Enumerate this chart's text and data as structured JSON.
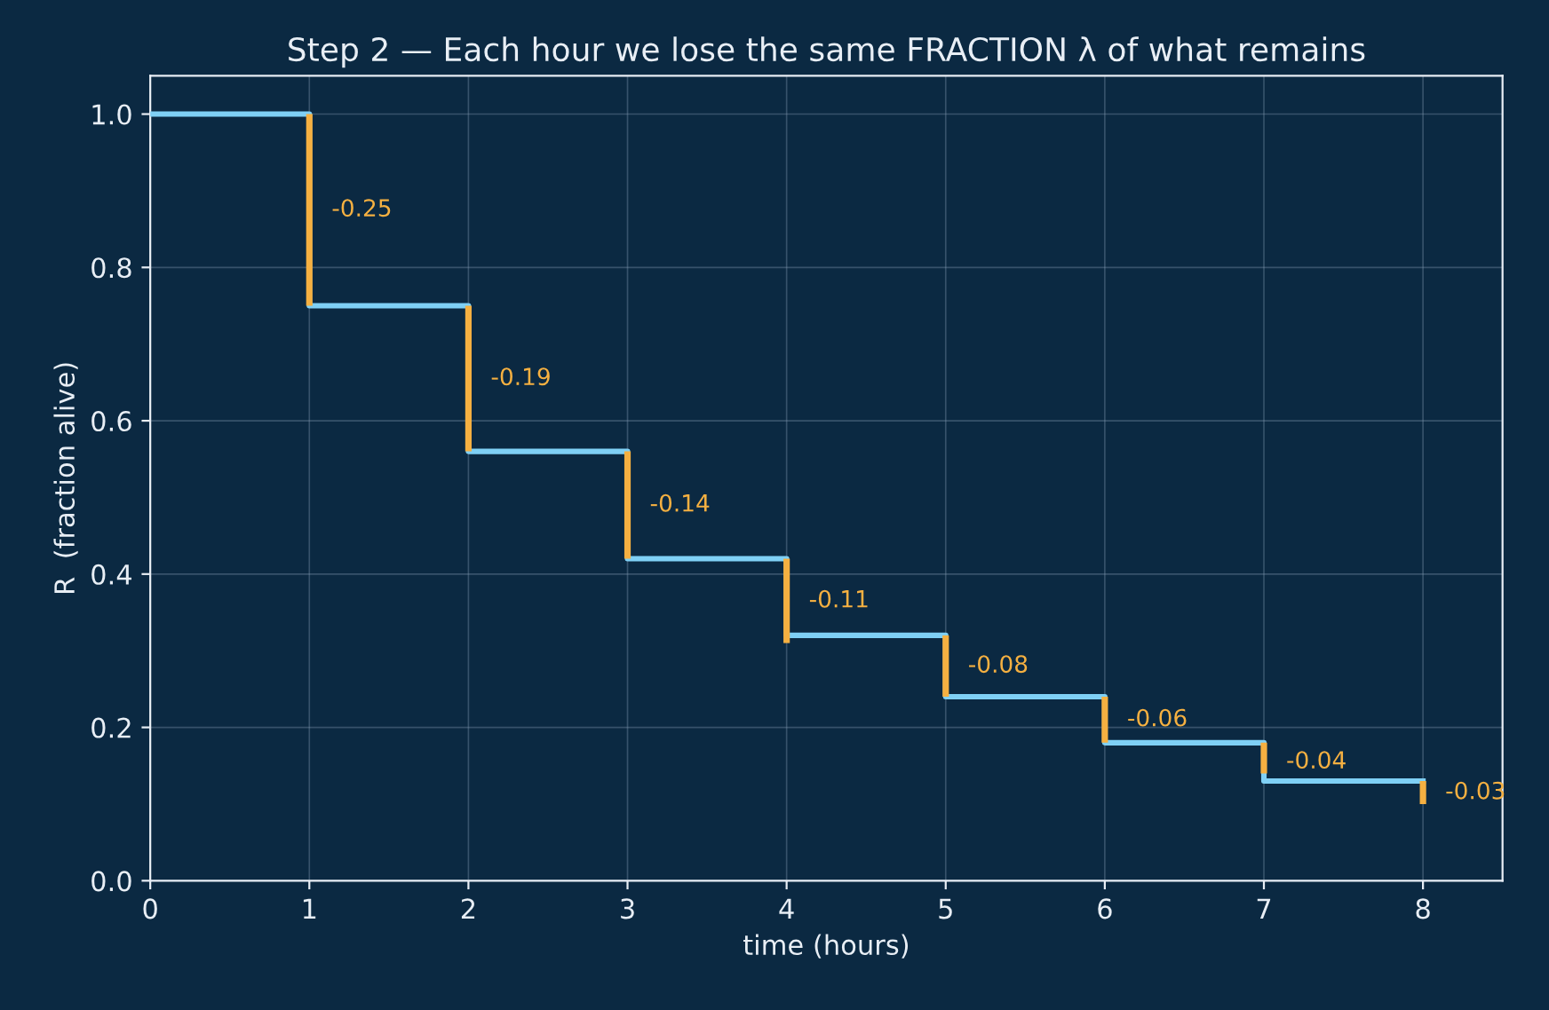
{
  "chart_data": {
    "type": "step",
    "title": "Step 2 — Each hour we lose the same FRACTION λ of what remains",
    "xlabel": "time (hours)",
    "ylabel": "R  (fraction alive)",
    "series": [
      {
        "color": "#7fd0f5",
        "x": [
          0,
          1,
          2,
          3,
          4,
          5,
          6,
          7,
          8
        ],
        "values": [
          1.0,
          0.75,
          0.56,
          0.42,
          0.32,
          0.24,
          0.18,
          0.13,
          0.13
        ]
      },
      {
        "type": "bar",
        "color": "#f5b041",
        "x": [
          1,
          2,
          3,
          4,
          5,
          6,
          7,
          8
        ],
        "base": [
          1.0,
          0.75,
          0.56,
          0.42,
          0.32,
          0.24,
          0.18,
          0.13
        ],
        "values": [
          -0.25,
          -0.19,
          -0.14,
          -0.11,
          -0.08,
          -0.06,
          -0.04,
          -0.03
        ]
      }
    ],
    "xlim": [
      0,
      8.5
    ],
    "xticks": [
      0,
      1,
      2,
      3,
      4,
      5,
      6,
      7,
      8
    ],
    "ylim": [
      0,
      1.05
    ],
    "yticks": [
      {
        "value": 0,
        "label": "0.0"
      },
      {
        "value": 0.2,
        "label": "0.2"
      },
      {
        "value": 0.4,
        "label": "0.4"
      },
      {
        "value": 0.6,
        "label": "0.6"
      },
      {
        "value": 0.8,
        "label": "0.8"
      },
      {
        "value": 1.0,
        "label": "1.0"
      }
    ],
    "grid": true,
    "annotations": [
      {
        "text": "-0.25",
        "x": 1,
        "y": 0.875
      },
      {
        "text": "-0.19",
        "x": 2,
        "y": 0.655
      },
      {
        "text": "-0.14",
        "x": 3,
        "y": 0.49
      },
      {
        "text": "-0.11",
        "x": 4,
        "y": 0.365
      },
      {
        "text": "-0.08",
        "x": 5,
        "y": 0.28
      },
      {
        "text": "-0.06",
        "x": 6,
        "y": 0.21
      },
      {
        "text": "-0.04",
        "x": 7,
        "y": 0.155
      },
      {
        "text": "-0.03",
        "x": 8,
        "y": 0.115
      }
    ]
  }
}
